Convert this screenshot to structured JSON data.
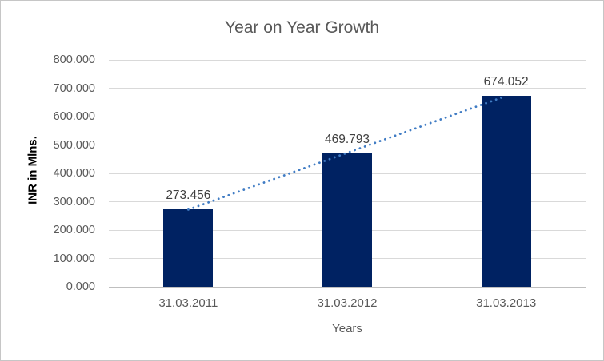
{
  "chart_data": {
    "type": "bar",
    "title": "Year on Year Growth",
    "xlabel": "Years",
    "ylabel": "INR in Mlns.",
    "categories": [
      "31.03.2011",
      "31.03.2012",
      "31.03.2013"
    ],
    "values": [
      273.456,
      469.793,
      674.052
    ],
    "data_labels": [
      "273.456",
      "469.793",
      "674.052"
    ],
    "y_ticks": [
      0,
      100,
      200,
      300,
      400,
      500,
      600,
      700,
      800
    ],
    "y_tick_labels": [
      "0.000",
      "100.000",
      "200.000",
      "300.000",
      "400.000",
      "500.000",
      "600.000",
      "700.000",
      "800.000"
    ],
    "ylim": [
      0,
      800
    ],
    "grid": true,
    "legend": false,
    "trendline": {
      "type": "linear",
      "style": "dotted",
      "endpoints": [
        272.1,
        672.7
      ]
    },
    "colors": {
      "bar": "#002262",
      "trendline": "#407cc4",
      "gridline": "#d9d9d9",
      "axis_line": "#bfbfbf",
      "tick_text": "#595959",
      "title_text": "#595959",
      "data_label_text": "#3f3f3f",
      "y_axis_title_text": "#000000",
      "chart_border": "#c6c6c6",
      "background": "#ffffff"
    }
  }
}
